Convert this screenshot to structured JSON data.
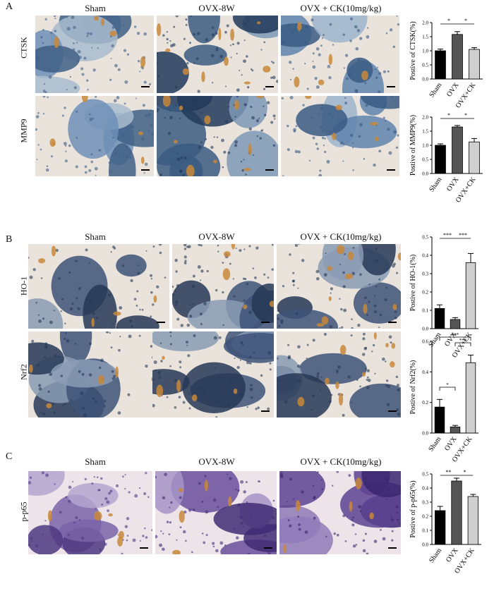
{
  "panels": [
    {
      "letter": "A",
      "columns": [
        "Sham",
        "OVX-8W",
        "OVX + CK(10mg/kg)"
      ],
      "rows": [
        "CTSK",
        "MMP9"
      ]
    },
    {
      "letter": "B",
      "columns": [
        "Sham",
        "OVX-8W",
        "OVX + CK(10mg/kg)"
      ],
      "rows": [
        "HO-1",
        "Nrf2"
      ]
    },
    {
      "letter": "C",
      "columns": [
        "Sham",
        "OVX-8W",
        "OVX + CK(10mg/kg)"
      ],
      "rows": [
        "p-p65"
      ]
    }
  ],
  "colors": {
    "tissue_blue": "#5a7fa8",
    "tissue_dark": "#2e4a6e",
    "stain_brown": "#c8883a",
    "bone_bg": "#e9e3dc",
    "purple": "#6c4f9a",
    "sham_bar": "#000000",
    "ovx_bar": "#555555",
    "ck_bar": "#cfcfcf"
  },
  "chart_data": [
    {
      "type": "bar",
      "categories": [
        "Sham",
        "OVX",
        "OVX+CK"
      ],
      "values": [
        1.0,
        1.58,
        1.05
      ],
      "errors": [
        0.06,
        0.1,
        0.06
      ],
      "ylabel": "Postive of CTSK(%)",
      "ylim": [
        0,
        2.0
      ],
      "yticks": [
        "0.0",
        "0.5",
        "1.0",
        "1.5",
        "2.0"
      ],
      "significance": [
        "*",
        "*"
      ]
    },
    {
      "type": "bar",
      "categories": [
        "Sham",
        "OVX",
        "OVX+CK"
      ],
      "values": [
        1.0,
        1.65,
        1.12
      ],
      "errors": [
        0.05,
        0.05,
        0.12
      ],
      "ylabel": "Postive of MMP9(%)",
      "ylim": [
        0,
        2.0
      ],
      "yticks": [
        "0.0",
        "0.5",
        "1.0",
        "1.5",
        "2.0"
      ],
      "significance": [
        "*",
        "*"
      ]
    },
    {
      "type": "bar",
      "categories": [
        "Sham",
        "OVX",
        "OVX+CK"
      ],
      "values": [
        0.11,
        0.05,
        0.36
      ],
      "errors": [
        0.02,
        0.01,
        0.05
      ],
      "ylabel": "Postive of HO-1(%)",
      "ylim": [
        0,
        0.5
      ],
      "yticks": [
        "0.0",
        "0.1",
        "0.2",
        "0.3",
        "0.4",
        "0.5"
      ],
      "significance": [
        "***",
        "***"
      ]
    },
    {
      "type": "bar",
      "categories": [
        "Sham",
        "OVX",
        "OVX+CK"
      ],
      "values": [
        0.17,
        0.04,
        0.46
      ],
      "errors": [
        0.05,
        0.01,
        0.05
      ],
      "ylabel": "Postive of Nrf2(%)",
      "ylim": [
        0,
        0.6
      ],
      "yticks": [
        "0.0",
        "0.2",
        "0.4",
        "0.6"
      ],
      "significance": [
        "*",
        "***",
        "***"
      ]
    },
    {
      "type": "bar",
      "categories": [
        "Sham",
        "OVX",
        "OVX+CK"
      ],
      "values": [
        0.24,
        0.45,
        0.34
      ],
      "errors": [
        0.03,
        0.02,
        0.015
      ],
      "ylabel": "Postive of p-p65(%)",
      "ylim": [
        0,
        0.5
      ],
      "yticks": [
        "0.0",
        "0.1",
        "0.2",
        "0.3",
        "0.4",
        "0.5"
      ],
      "significance": [
        "**",
        "*"
      ]
    }
  ]
}
